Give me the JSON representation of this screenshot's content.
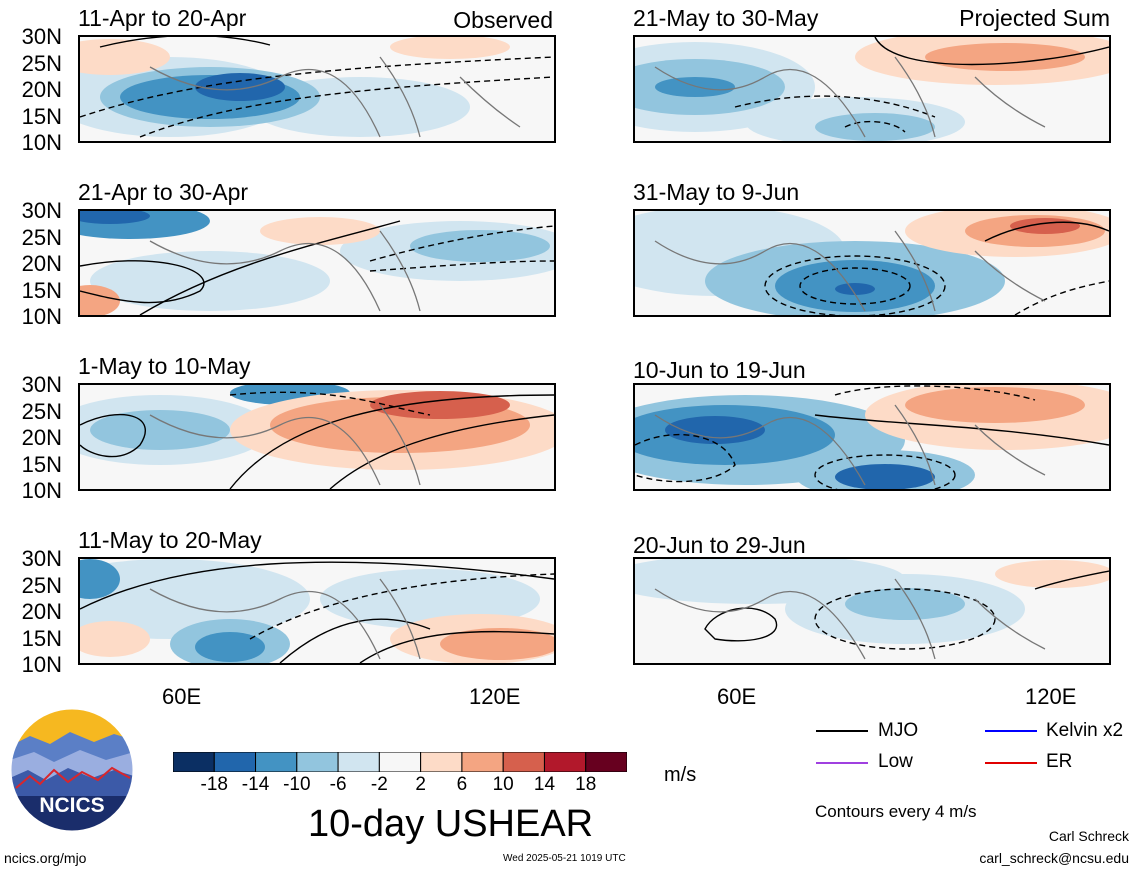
{
  "panels": [
    {
      "title": "11-Apr to 20-Apr",
      "tag": "Observed"
    },
    {
      "title": "21-May to 30-May",
      "tag": "Projected Sum"
    },
    {
      "title": "21-Apr to 30-Apr",
      "tag": ""
    },
    {
      "title": "31-May to 9-Jun",
      "tag": ""
    },
    {
      "title": "1-May to 10-May",
      "tag": ""
    },
    {
      "title": "10-Jun to 19-Jun",
      "tag": ""
    },
    {
      "title": "11-May to 20-May",
      "tag": ""
    },
    {
      "title": "20-Jun to 29-Jun",
      "tag": ""
    }
  ],
  "lat_labels": [
    "30N",
    "25N",
    "20N",
    "15N",
    "10N"
  ],
  "lon_labels": [
    "60E",
    "120E"
  ],
  "colorbar": {
    "ticks": [
      "-18",
      "-14",
      "-10",
      "-6",
      "-2",
      "2",
      "6",
      "10",
      "14",
      "18"
    ],
    "colors": [
      "#0b2f63",
      "#2166ac",
      "#4393c3",
      "#92c5de",
      "#d1e5f0",
      "#f7f7f7",
      "#fddbc7",
      "#f4a582",
      "#d6604d",
      "#b2182b",
      "#67001f"
    ],
    "units": "m/s"
  },
  "title": "10-day USHEAR",
  "legend": [
    {
      "label": "MJO",
      "color": "#000000"
    },
    {
      "label": "Kelvin x2",
      "color": "#0000ff"
    },
    {
      "label": "Low",
      "color": "#a040e0"
    },
    {
      "label": "ER",
      "color": "#e00000"
    }
  ],
  "contour_note": "Contours every 4 m/s",
  "logo_text": "NCICS",
  "footer": {
    "url": "ncics.org/mjo",
    "timestamp": "Wed 2025-05-21 1019 UTC",
    "author": "Carl Schreck",
    "email": "carl_schreck@ncsu.edu"
  }
}
